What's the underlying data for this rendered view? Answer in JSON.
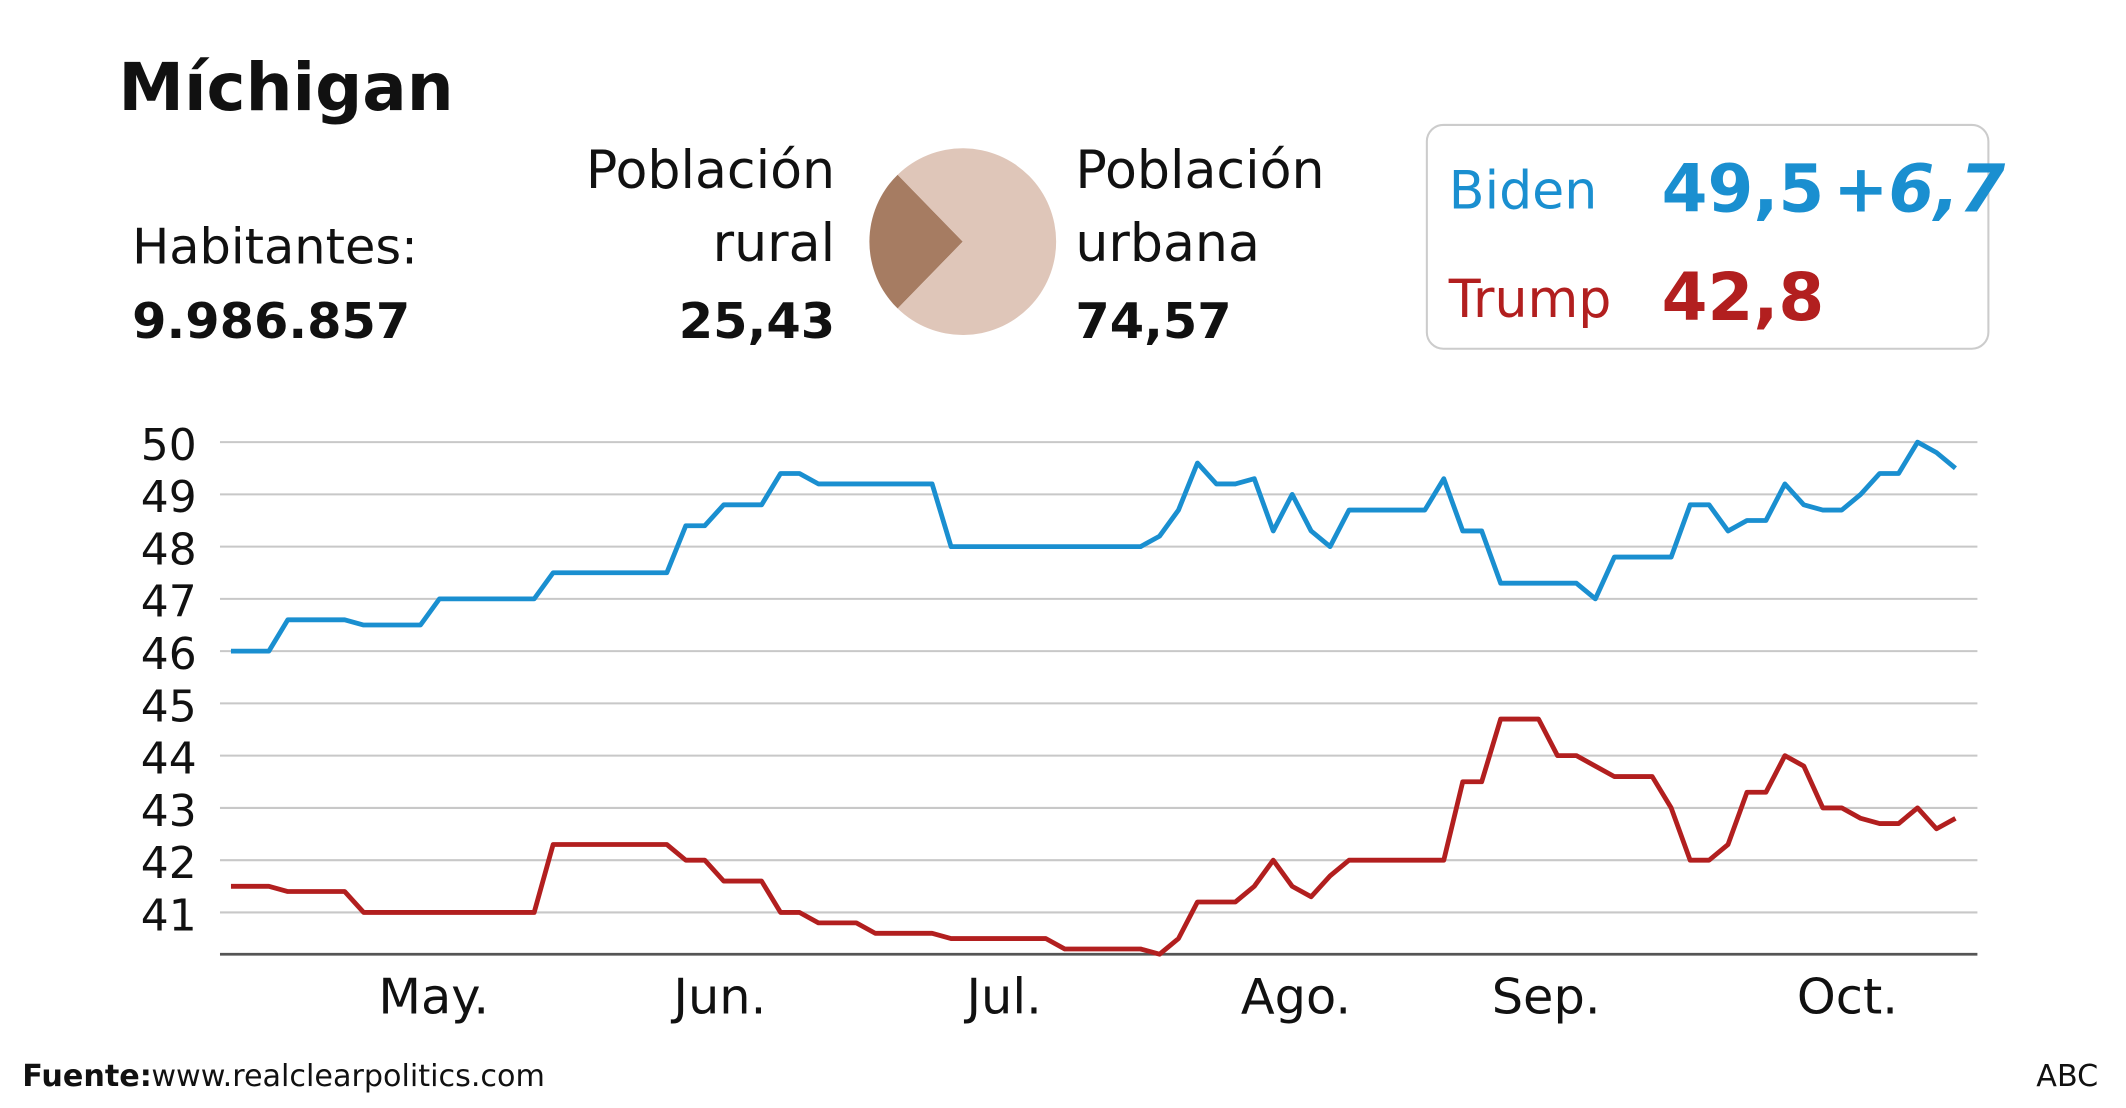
{
  "title": "Míchigan",
  "population": {
    "label": "Habitantes:",
    "value": "9.986.857"
  },
  "results": [
    {
      "name": "Biden",
      "value": "49,5",
      "lead": "+6,7",
      "color": "#1a8fd0"
    },
    {
      "name": "Trump",
      "value": "42,8",
      "color": "#b21f1f"
    }
  ],
  "chart_data": [
    {
      "type": "pie",
      "categories": [
        "Población rural",
        "Población urbana"
      ],
      "values": [
        25.43,
        74.57
      ],
      "value_labels": [
        "25,43",
        "74,57"
      ],
      "colors": [
        "#a67c62",
        "#dfc6b9"
      ]
    },
    {
      "type": "line",
      "series": [
        {
          "color": "#1a8fd0",
          "values": [
            46.0,
            46.0,
            46.0,
            46.6,
            46.6,
            46.6,
            46.6,
            46.5,
            46.5,
            46.5,
            46.5,
            47.0,
            47.0,
            47.0,
            47.0,
            47.0,
            47.0,
            47.5,
            47.5,
            47.5,
            47.5,
            47.5,
            47.5,
            47.5,
            48.4,
            48.4,
            48.8,
            48.8,
            48.8,
            49.4,
            49.4,
            49.2,
            49.2,
            49.2,
            49.2,
            49.2,
            49.2,
            49.2,
            48.0,
            48.0,
            48.0,
            48.0,
            48.0,
            48.0,
            48.0,
            48.0,
            48.0,
            48.0,
            48.0,
            48.2,
            48.7,
            49.6,
            49.2,
            49.2,
            49.3,
            48.3,
            49.0,
            48.3,
            48.0,
            48.7,
            48.7,
            48.7,
            48.7,
            48.7,
            49.3,
            48.3,
            48.3,
            47.3,
            47.3,
            47.3,
            47.3,
            47.3,
            47.0,
            47.8,
            47.8,
            47.8,
            47.8,
            48.8,
            48.8,
            48.3,
            48.5,
            48.5,
            49.2,
            48.8,
            48.7,
            48.7,
            49.0,
            49.4,
            49.4,
            50.0,
            49.8,
            49.5
          ]
        },
        {
          "color": "#b21f1f",
          "values": [
            41.5,
            41.5,
            41.5,
            41.4,
            41.4,
            41.4,
            41.4,
            41.0,
            41.0,
            41.0,
            41.0,
            41.0,
            41.0,
            41.0,
            41.0,
            41.0,
            41.0,
            42.3,
            42.3,
            42.3,
            42.3,
            42.3,
            42.3,
            42.3,
            42.0,
            42.0,
            41.6,
            41.6,
            41.6,
            41.0,
            41.0,
            40.8,
            40.8,
            40.8,
            40.6,
            40.6,
            40.6,
            40.6,
            40.5,
            40.5,
            40.5,
            40.5,
            40.5,
            40.5,
            40.3,
            40.3,
            40.3,
            40.3,
            40.3,
            40.2,
            40.5,
            41.2,
            41.2,
            41.2,
            41.5,
            42.0,
            41.5,
            41.3,
            41.7,
            42.0,
            42.0,
            42.0,
            42.0,
            42.0,
            42.0,
            43.5,
            43.5,
            44.7,
            44.7,
            44.7,
            44.0,
            44.0,
            43.8,
            43.6,
            43.6,
            43.6,
            43.0,
            42.0,
            42.0,
            42.3,
            43.3,
            43.3,
            44.0,
            43.8,
            43.0,
            43.0,
            42.8,
            42.7,
            42.7,
            43.0,
            42.6,
            42.8
          ]
        }
      ],
      "xlim": [
        0,
        91
      ],
      "xticks": [
        {
          "value": 10.7,
          "label": "May."
        },
        {
          "value": 25.8,
          "label": "Jun."
        },
        {
          "value": 40.8,
          "label": "Jul."
        },
        {
          "value": 56.2,
          "label": "Ago."
        },
        {
          "value": 69.4,
          "label": "Sep."
        },
        {
          "value": 85.3,
          "label": "Oct."
        }
      ],
      "ylim": [
        40.2,
        50.3
      ],
      "yticks": [
        41,
        42,
        43,
        44,
        45,
        46,
        47,
        48,
        49,
        50
      ],
      "grid": true
    }
  ],
  "source_label": "Fuente:",
  "source": "www.realclearpolitics.com",
  "credit": "ABC"
}
